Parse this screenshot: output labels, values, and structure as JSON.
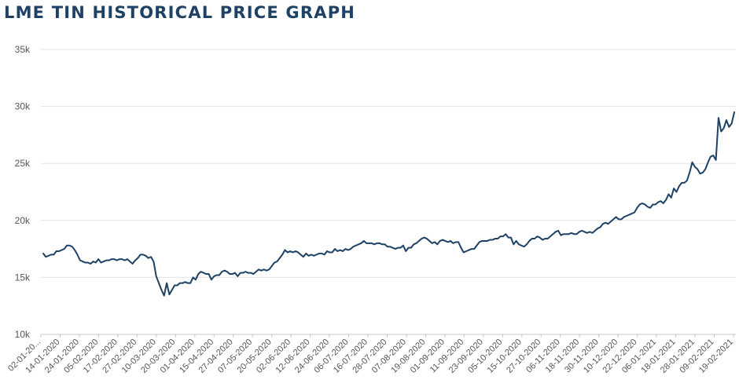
{
  "chart_data": {
    "type": "line",
    "title": "LME TIN HISTORICAL PRICE GRAPH",
    "xlabel": "",
    "ylabel": "",
    "ylim": [
      10000,
      35000
    ],
    "yticks": [
      10000,
      15000,
      20000,
      25000,
      30000,
      35000
    ],
    "ytick_labels": [
      "10k",
      "15k",
      "20k",
      "25k",
      "30k",
      "35k"
    ],
    "grid": "horizontal",
    "legend": "none",
    "line_color": "#1d4266",
    "x_tick_labels": [
      "02-01-20...",
      "14-01-2020",
      "24-01-2020",
      "05-02-2020",
      "17-02-2020",
      "27-02-2020",
      "10-03-2020",
      "20-03-2020",
      "01-04-2020",
      "15-04-2020",
      "27-04-2020",
      "07-05-2020",
      "20-05-2020",
      "02-06-2020",
      "12-06-2020",
      "24-06-2020",
      "06-07-2020",
      "16-07-2020",
      "28-07-2020",
      "07-08-2020",
      "19-08-2020",
      "01-09-2020",
      "11-09-2020",
      "23-09-2020",
      "05-10-2020",
      "15-10-2020",
      "27-10-2020",
      "06-11-2020",
      "18-11-2020",
      "30-11-2020",
      "10-12-2020",
      "22-12-2020",
      "06-01-2021",
      "18-01-2021",
      "28-01-2021",
      "09-02-2021",
      "19-02-2021"
    ],
    "series": [
      {
        "values": [
          17100,
          16800,
          16900,
          17000,
          17000,
          17300,
          17300,
          17400,
          17500,
          17800,
          17800,
          17700,
          17400,
          17000,
          16500,
          16400,
          16300,
          16300,
          16200,
          16400,
          16300,
          16600,
          16300,
          16400,
          16500,
          16500,
          16600,
          16600,
          16500,
          16600,
          16600,
          16500,
          16600,
          16400,
          16200,
          16500,
          16700,
          17000,
          17000,
          16900,
          16700,
          16800,
          16400,
          15100,
          14500,
          13900,
          13400,
          14500,
          13500,
          13900,
          14300,
          14300,
          14500,
          14500,
          14600,
          14500,
          14500,
          15000,
          14800,
          15300,
          15500,
          15400,
          15300,
          15300,
          14800,
          15100,
          15200,
          15200,
          15500,
          15600,
          15500,
          15300,
          15300,
          15400,
          15100,
          15400,
          15400,
          15500,
          15400,
          15400,
          15300,
          15500,
          15700,
          15600,
          15700,
          15600,
          15700,
          16000,
          16300,
          16400,
          16700,
          17000,
          17400,
          17200,
          17300,
          17200,
          17300,
          17200,
          17000,
          16800,
          17100,
          16900,
          17000,
          16900,
          17000,
          17100,
          17100,
          17000,
          17300,
          17200,
          17200,
          17500,
          17300,
          17400,
          17300,
          17500,
          17400,
          17500,
          17700,
          17800,
          17900,
          18000,
          18200,
          18000,
          18000,
          18000,
          17900,
          18000,
          18000,
          17900,
          17900,
          17700,
          17700,
          17600,
          17500,
          17600,
          17600,
          17800,
          17300,
          17600,
          17600,
          17900,
          18000,
          18200,
          18400,
          18500,
          18400,
          18200,
          18000,
          18100,
          17900,
          18200,
          18300,
          18200,
          18100,
          18200,
          18000,
          18100,
          18100,
          17600,
          17200,
          17300,
          17400,
          17500,
          17500,
          17800,
          18100,
          18200,
          18200,
          18200,
          18300,
          18300,
          18400,
          18400,
          18600,
          18600,
          18800,
          18500,
          18500,
          17900,
          18200,
          17900,
          17800,
          17700,
          17900,
          18200,
          18400,
          18400,
          18600,
          18500,
          18300,
          18400,
          18400,
          18600,
          18800,
          19000,
          19100,
          18700,
          18800,
          18800,
          18800,
          18900,
          18800,
          18800,
          19000,
          19100,
          19000,
          18900,
          19000,
          18900,
          19100,
          19300,
          19400,
          19700,
          19800,
          19700,
          19900,
          20100,
          20300,
          20100,
          20100,
          20300,
          20400,
          20500,
          20600,
          20700,
          21100,
          21400,
          21500,
          21400,
          21200,
          21100,
          21400,
          21400,
          21600,
          21700,
          21500,
          21800,
          22300,
          22000,
          22800,
          22500,
          23000,
          23300,
          23300,
          23500,
          24200,
          25100,
          24700,
          24500,
          24100,
          24200,
          24500,
          25100,
          25600,
          25700,
          25300,
          29000,
          27800,
          28100,
          28800,
          28200,
          28500,
          29500
        ]
      }
    ]
  }
}
